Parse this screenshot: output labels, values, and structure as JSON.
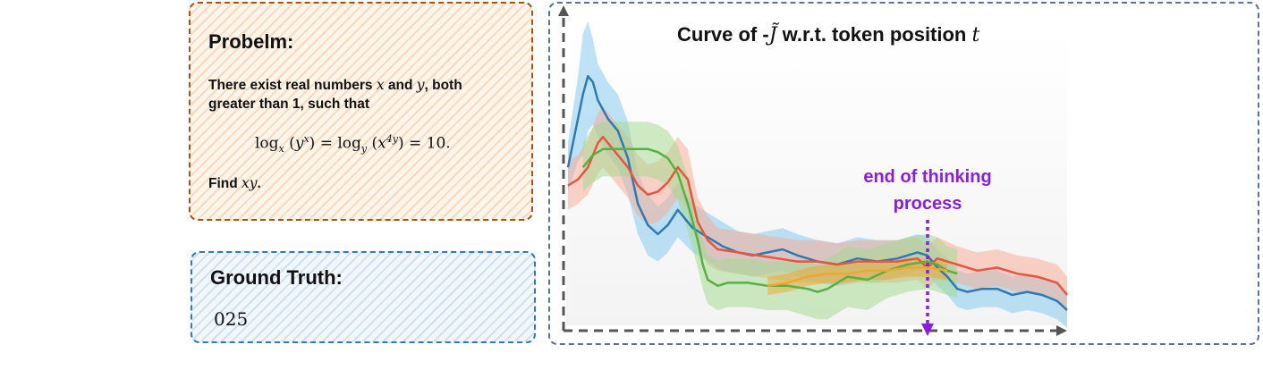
{
  "problem": {
    "heading": "Probelm:",
    "line1_pre": "There exist real numbers ",
    "var_x": "x",
    "line1_and": " and ",
    "var_y": "y",
    "line1_post": ", both",
    "line2": "greater than 1, such that",
    "eq_log": "log",
    "eq_sub_x": "x",
    "eq_arg1_base": "y",
    "eq_arg1_exp": "x",
    "eq_mid": "= log",
    "eq_sub_y": "y",
    "eq_arg2_base": "x",
    "eq_arg2_exp": "4y",
    "eq_end": "= 10.",
    "find_label": "Find ",
    "find_var": "xy",
    "find_end": "."
  },
  "ground_truth": {
    "heading": "Ground Truth:",
    "value": "025"
  },
  "chart": {
    "title_pre": "Curve of  -",
    "title_symbol": "J̃",
    "title_post": " w.r.t. token position ",
    "title_var": "t",
    "annotation_line1": "end of thinking",
    "annotation_line2": "process",
    "colors": {
      "blue": "#2e7ab3",
      "blue_band": "#7ec8ef",
      "red": "#e8553f",
      "red_band": "#f8a98f",
      "green": "#58b043",
      "green_band": "#9fd98c",
      "orange": "#f0a630",
      "annotation": "#8a1ee0",
      "axis": "#555555"
    }
  },
  "chart_data": {
    "type": "line",
    "title": "Curve of -J̃ w.r.t. token position t",
    "xlabel": "",
    "ylabel": "",
    "x_ticks_shown": false,
    "y_ticks_shown": false,
    "xlim": [
      0,
      100
    ],
    "ylim": [
      0,
      100
    ],
    "end_of_thinking_x": 72,
    "series": [
      {
        "color": "blue",
        "x": [
          0,
          2,
          3,
          4,
          5,
          6,
          8,
          10,
          12,
          14,
          16,
          18,
          20,
          22,
          25,
          28,
          31,
          34,
          37,
          40,
          43,
          46,
          50,
          54,
          58,
          62,
          66,
          70,
          72,
          74,
          76,
          78,
          80,
          83,
          86,
          89,
          92,
          95,
          98,
          100
        ],
        "y": [
          52,
          68,
          76,
          82,
          80,
          74,
          68,
          64,
          55,
          40,
          33,
          30,
          33,
          38,
          32,
          29,
          26,
          24,
          23,
          24,
          25,
          23,
          21,
          20,
          22,
          21,
          22,
          24,
          23,
          19,
          16,
          12,
          11,
          12,
          12,
          10,
          11,
          10,
          8,
          5
        ],
        "band": [
          8,
          14,
          20,
          18,
          14,
          12,
          12,
          12,
          12,
          10,
          10,
          9,
          9,
          9,
          8,
          8,
          8,
          7,
          7,
          7,
          7,
          7,
          7,
          7,
          7,
          7,
          6,
          6,
          6,
          6,
          6,
          6,
          6,
          6,
          6,
          6,
          6,
          6,
          6,
          6
        ]
      },
      {
        "color": "red",
        "x": [
          0,
          2,
          4,
          6,
          7,
          8,
          10,
          12,
          14,
          16,
          18,
          20,
          22,
          24,
          26,
          28,
          30,
          34,
          38,
          42,
          46,
          50,
          54,
          58,
          62,
          66,
          70,
          72,
          74,
          78,
          82,
          86,
          90,
          94,
          98,
          100
        ],
        "y": [
          46,
          48,
          52,
          60,
          62,
          60,
          56,
          52,
          46,
          43,
          44,
          47,
          52,
          48,
          34,
          28,
          25,
          24,
          23,
          22,
          21,
          21,
          20,
          21,
          21,
          21,
          22,
          19,
          22,
          20,
          18,
          19,
          17,
          16,
          14,
          10
        ],
        "band": [
          8,
          8,
          9,
          10,
          10,
          10,
          10,
          10,
          10,
          10,
          10,
          10,
          10,
          10,
          8,
          8,
          7,
          7,
          7,
          7,
          7,
          7,
          7,
          7,
          7,
          7,
          7,
          7,
          7,
          6,
          6,
          6,
          6,
          6,
          6,
          6
        ]
      },
      {
        "color": "green",
        "x": [
          3,
          5,
          7,
          9,
          12,
          14,
          16,
          18,
          20,
          22,
          24,
          26,
          27,
          28,
          30,
          32,
          36,
          40,
          44,
          48,
          50,
          52,
          54,
          56,
          60,
          64,
          68,
          72,
          74,
          76,
          78
        ],
        "y": [
          52,
          56,
          58,
          58,
          58,
          58,
          58,
          57,
          55,
          50,
          40,
          28,
          20,
          15,
          13,
          14,
          14,
          13,
          13,
          12,
          11,
          12,
          14,
          16,
          15,
          18,
          20,
          21,
          20,
          18,
          17
        ],
        "band": [
          8,
          9,
          9,
          9,
          9,
          9,
          9,
          9,
          9,
          9,
          9,
          9,
          8,
          8,
          8,
          8,
          8,
          8,
          8,
          9,
          9,
          10,
          10,
          10,
          10,
          9,
          9,
          9,
          9,
          8,
          8
        ]
      },
      {
        "color": "orange",
        "x": [
          40,
          44,
          48,
          52,
          56,
          60,
          64,
          68,
          72,
          76
        ],
        "y": [
          13,
          14,
          16,
          17,
          17,
          18,
          18,
          19,
          19,
          18
        ],
        "band": [
          3,
          3,
          3,
          3,
          3,
          3,
          3,
          3,
          3,
          3
        ]
      }
    ]
  }
}
